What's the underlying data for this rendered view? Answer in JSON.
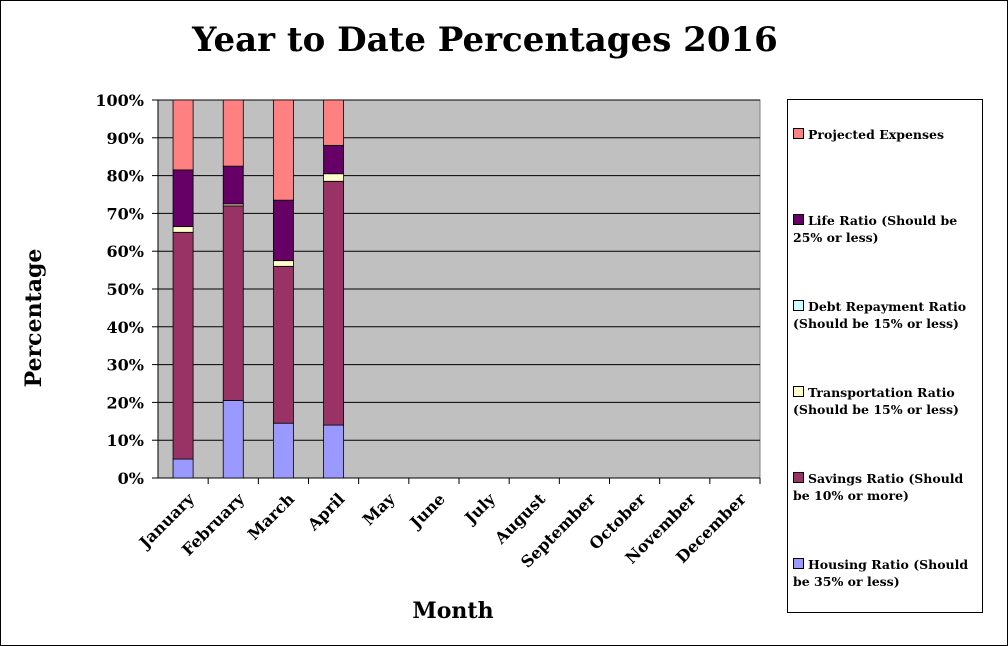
{
  "chart_data": {
    "type": "bar",
    "stacked": true,
    "title": "Year to Date Percentages 2016",
    "xlabel": "Month",
    "ylabel": "Percentage",
    "ylim": [
      0,
      100
    ],
    "y_ticks": [
      "0%",
      "10%",
      "20%",
      "30%",
      "40%",
      "50%",
      "60%",
      "70%",
      "80%",
      "90%",
      "100%"
    ],
    "grid": true,
    "legend_position": "right",
    "plot_background": "#c0c0c0",
    "categories": [
      "January",
      "February",
      "March",
      "April",
      "May",
      "June",
      "July",
      "August",
      "September",
      "October",
      "November",
      "December"
    ],
    "series": [
      {
        "name": "Housing Ratio (Should be 35% or less)",
        "color": "#9999ff",
        "values": [
          5,
          20.5,
          14.5,
          14,
          0,
          0,
          0,
          0,
          0,
          0,
          0,
          0
        ]
      },
      {
        "name": "Savings Ratio (Should be 10% or more)",
        "color": "#993366",
        "values": [
          60,
          51.5,
          41.5,
          64.5,
          0,
          0,
          0,
          0,
          0,
          0,
          0,
          0
        ]
      },
      {
        "name": "Transportation Ratio (Should be 15% or less)",
        "color": "#ffffcc",
        "values": [
          1.5,
          0.5,
          1.5,
          2,
          0,
          0,
          0,
          0,
          0,
          0,
          0,
          0
        ]
      },
      {
        "name": "Debt Repayment Ratio (Should be 15% or less)",
        "color": "#ccffff",
        "values": [
          0,
          0,
          0,
          0,
          0,
          0,
          0,
          0,
          0,
          0,
          0,
          0
        ]
      },
      {
        "name": "Life Ratio (Should be 25% or less)",
        "color": "#660066",
        "values": [
          15,
          10,
          16,
          7.5,
          0,
          0,
          0,
          0,
          0,
          0,
          0,
          0
        ]
      },
      {
        "name": "Projected Expenses",
        "color": "#ff8080",
        "values": [
          18.5,
          17.5,
          26.5,
          12,
          0,
          0,
          0,
          0,
          0,
          0,
          0,
          0
        ]
      }
    ]
  },
  "legend": [
    {
      "label": "Projected Expenses",
      "color": "#ff8080"
    },
    {
      "label": "Life Ratio (Should be 25% or less)",
      "color": "#660066"
    },
    {
      "label": "Debt Repayment Ratio (Should be 15% or less)",
      "color": "#ccffff"
    },
    {
      "label": "Transportation Ratio (Should be 15% or less)",
      "color": "#ffffcc"
    },
    {
      "label": "Savings Ratio (Should be 10% or more)",
      "color": "#993366"
    },
    {
      "label": "Housing Ratio (Should be 35% or less)",
      "color": "#9999ff"
    }
  ]
}
